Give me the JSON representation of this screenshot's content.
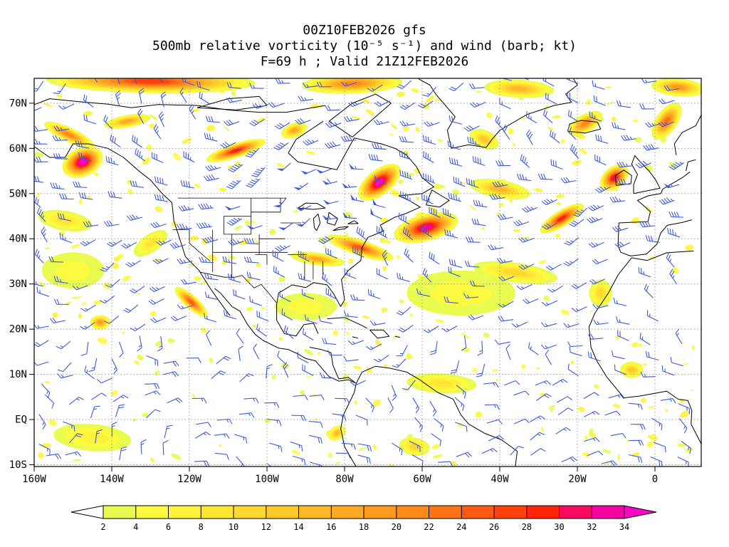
{
  "header": {
    "line1": "00Z10FEB2026 gfs",
    "line2": "500mb relative vorticity (10⁻⁵ s⁻¹) and wind (barb; kt)",
    "line3": "F=69 h ; Valid 21Z12FEB2026"
  },
  "chart_data": {
    "type": "heatmap",
    "title": "00Z10FEB2026 gfs",
    "subtitle": "500mb relative vorticity (10⁻⁵ s⁻¹) and wind (barb; kt)",
    "forecast": "F=69 h ; Valid 21Z12FEB2026",
    "projection": "latlon",
    "lon_axis": {
      "ticks": [
        -160,
        -140,
        -120,
        -100,
        -80,
        -60,
        -40,
        -20,
        0
      ],
      "labels": [
        "160W",
        "140W",
        "120W",
        "100W",
        "80W",
        "60W",
        "40W",
        "20W",
        "0"
      ],
      "min": -160,
      "max": 12
    },
    "lat_axis": {
      "ticks": [
        70,
        60,
        50,
        40,
        30,
        20,
        10,
        0,
        -10
      ],
      "labels": [
        "70N",
        "60N",
        "50N",
        "40N",
        "30N",
        "20N",
        "10N",
        "EQ",
        "10S"
      ],
      "min": -11.9,
      "max": 75.5
    },
    "colorbar": {
      "levels": [
        2,
        4,
        6,
        8,
        10,
        12,
        14,
        16,
        18,
        20,
        22,
        24,
        26,
        28,
        30,
        32,
        34
      ],
      "labels": [
        "2",
        "4",
        "6",
        "8",
        "10",
        "12",
        "14",
        "16",
        "18",
        "20",
        "22",
        "24",
        "26",
        "28",
        "30",
        "32",
        "34"
      ],
      "colors": [
        "#e9fb4e",
        "#fcfa40",
        "#fff23a",
        "#ffe634",
        "#ffd72f",
        "#ffc82b",
        "#ffb827",
        "#ffa923",
        "#ff9a1f",
        "#ff8a1b",
        "#ff7316",
        "#ff5a11",
        "#ff3f0c",
        "#ff2407",
        "#f60b5e",
        "#f304a0"
      ],
      "under_color": "#ffffff",
      "over_color": "#fb05c9"
    },
    "wind_barbs": {
      "color": "#3c5ae0",
      "units": "kt"
    },
    "grid_color": "#999999",
    "coast_color": "#000000",
    "vorticity_features": [
      {
        "n": "arctic-band-west",
        "lon": -130,
        "lat": 74.8,
        "max": 26,
        "sx": 27,
        "sy": 2.6,
        "rot": 1
      },
      {
        "n": "arctic-band-east",
        "lon": -78,
        "lat": 74.3,
        "max": 20,
        "sx": 13,
        "sy": 2.2,
        "rot": -2
      },
      {
        "n": "greenland-top",
        "lon": -35,
        "lat": 73.2,
        "max": 14,
        "sx": 9,
        "sy": 2.0,
        "rot": 3
      },
      {
        "n": "gulf-of-alaska",
        "lon": -147.5,
        "lat": 57,
        "max": 34,
        "sx": 5.5,
        "sy": 3.2,
        "rot": -25
      },
      {
        "n": "alaska-arc",
        "lon": -151,
        "lat": 63,
        "max": 20,
        "sx": 7,
        "sy": 1.6,
        "rot": 25
      },
      {
        "n": "yukon-streak",
        "lon": -136,
        "lat": 66,
        "max": 16,
        "sx": 6,
        "sy": 1.4,
        "rot": -10
      },
      {
        "n": "nwt-streak",
        "lon": -108,
        "lat": 59.5,
        "max": 28,
        "sx": 8,
        "sy": 1.6,
        "rot": -18
      },
      {
        "n": "hudson-spot",
        "lon": -93,
        "lat": 64,
        "max": 16,
        "sx": 3.5,
        "sy": 1.6,
        "rot": -20
      },
      {
        "n": "quebec-arc",
        "lon": -71,
        "lat": 52.5,
        "max": 34,
        "sx": 6.5,
        "sy": 2.8,
        "rot": -38
      },
      {
        "n": "atlantic-comma-core",
        "lon": -59,
        "lat": 42.5,
        "max": 32,
        "sx": 8.5,
        "sy": 3.0,
        "rot": -15
      },
      {
        "n": "comma-tail-mid",
        "lon": -76,
        "lat": 38,
        "max": 24,
        "sx": 9,
        "sy": 1.8,
        "rot": 18
      },
      {
        "n": "comma-tail-west",
        "lon": -87,
        "lat": 35.5,
        "max": 16,
        "sx": 7,
        "sy": 1.4,
        "rot": 8
      },
      {
        "n": "baja-streak",
        "lon": -119.5,
        "lat": 26,
        "max": 24,
        "sx": 5.5,
        "sy": 1.5,
        "rot": 42
      },
      {
        "n": "pacific-blob",
        "lon": -143,
        "lat": 21.5,
        "max": 18,
        "sx": 2.6,
        "sy": 1.6,
        "rot": 0
      },
      {
        "n": "midatlantic-arc",
        "lon": -24,
        "lat": 44.5,
        "max": 28,
        "sx": 6.5,
        "sy": 1.8,
        "rot": -32
      },
      {
        "n": "europe-curl",
        "lon": -10.5,
        "lat": 53.5,
        "max": 30,
        "sx": 4.2,
        "sy": 2.4,
        "rot": -40
      },
      {
        "n": "iceland-band",
        "lon": -18,
        "lat": 65.5,
        "max": 20,
        "sx": 5,
        "sy": 2.0,
        "rot": -30
      },
      {
        "n": "norway-band",
        "lon": 3,
        "lat": 66,
        "max": 22,
        "sx": 5.5,
        "sy": 2.4,
        "rot": -55
      },
      {
        "n": "topright-band",
        "lon": 6,
        "lat": 73.5,
        "max": 18,
        "sx": 7,
        "sy": 2.0,
        "rot": 5
      },
      {
        "n": "greenland-south",
        "lon": -44,
        "lat": 62,
        "max": 12,
        "sx": 4,
        "sy": 2.0,
        "rot": 25
      },
      {
        "n": "atlantic-50n-band",
        "lon": -40,
        "lat": 51,
        "max": 14,
        "sx": 8,
        "sy": 2.0,
        "rot": 10
      },
      {
        "n": "azores-band",
        "lon": -36,
        "lat": 32.5,
        "max": 10,
        "sx": 11,
        "sy": 2.2,
        "rot": 8
      },
      {
        "n": "morocco-patch",
        "lon": -14,
        "lat": 28,
        "max": 10,
        "sx": 3,
        "sy": 3.0,
        "rot": 0
      },
      {
        "n": "africa-spot",
        "lon": -6,
        "lat": 11,
        "max": 12,
        "sx": 3,
        "sy": 1.8,
        "rot": 0
      },
      {
        "n": "caribbean-band",
        "lon": -55,
        "lat": 8,
        "max": 8,
        "sx": 9,
        "sy": 2.2,
        "rot": 3
      },
      {
        "n": "sa-east-spot",
        "lon": -62,
        "lat": -6,
        "max": 10,
        "sx": 4,
        "sy": 2.0,
        "rot": 10
      },
      {
        "n": "ecuador-spot",
        "lon": -82,
        "lat": -3,
        "max": 14,
        "sx": 2.5,
        "sy": 1.5,
        "rot": -30
      },
      {
        "n": "pacific-nw-band",
        "lon": -152,
        "lat": 44,
        "max": 8,
        "sx": 7,
        "sy": 2.2,
        "rot": 10
      },
      {
        "n": "ca-coast-band",
        "lon": -130,
        "lat": 39,
        "max": 8,
        "sx": 5,
        "sy": 2.0,
        "rot": -35
      },
      {
        "n": "tropics-west-band",
        "lon": -145,
        "lat": -4,
        "max": 6,
        "sx": 10,
        "sy": 3.0,
        "rot": 5
      },
      {
        "n": "natl-subtrop-wash",
        "lon": -50,
        "lat": 28,
        "max": 4,
        "sx": 14,
        "sy": 5.0,
        "rot": 0
      },
      {
        "n": "npac-wash",
        "lon": -150,
        "lat": 33,
        "max": 4,
        "sx": 8,
        "sy": 4.0,
        "rot": 0
      },
      {
        "n": "gulf-wash",
        "lon": -90,
        "lat": 25,
        "max": 4,
        "sx": 8,
        "sy": 3.0,
        "rot": 0
      }
    ]
  }
}
